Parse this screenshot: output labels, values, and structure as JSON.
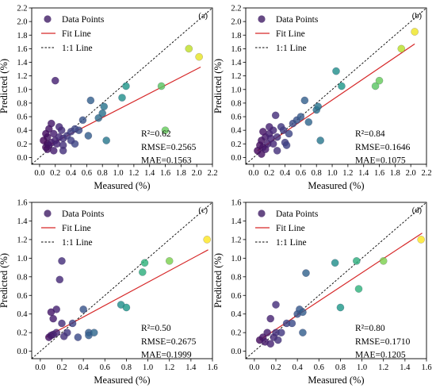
{
  "colors": {
    "fit_line": "#d62728",
    "one_to_one": "#000000",
    "legend_marker": "#4b2a6e",
    "axes": "#000000",
    "colormap": [
      "#440154",
      "#482878",
      "#3e4a89",
      "#31688e",
      "#26828e",
      "#1f9e89",
      "#35b779",
      "#6ece58",
      "#b5de2b",
      "#fde725"
    ]
  },
  "legend": {
    "points_label": "Data Points",
    "fit_label": "Fit Line",
    "one_to_one_label": "1:1 Line"
  },
  "chart_data": [
    {
      "type": "scatter",
      "panel": "(a)",
      "xlabel": "Measured (%)",
      "ylabel": "Predicted (%)",
      "xlim": [
        -0.1,
        2.2
      ],
      "ylim": [
        -0.1,
        2.2
      ],
      "xticks": [
        "0.0",
        "0.2",
        "0.4",
        "0.6",
        "0.8",
        "1.0",
        "1.2",
        "1.4",
        "1.6",
        "1.8",
        "2.0",
        "2.2"
      ],
      "yticks": [
        "0.0",
        "0.2",
        "0.4",
        "0.6",
        "0.8",
        "1.0",
        "1.2",
        "1.4",
        "1.6",
        "1.8",
        "2.0",
        "2.2"
      ],
      "grid": false,
      "legend_position": "upper-left",
      "fit_line": {
        "x": [
          0.05,
          2.05
        ],
        "y": [
          0.14,
          1.33
        ]
      },
      "stats": {
        "r2": "R²=0.62",
        "rmse": "RMSE=0.2565",
        "mae": "MAE=0.1563"
      },
      "points": [
        {
          "x": 0.08,
          "y": 0.15
        },
        {
          "x": 0.1,
          "y": 0.2
        },
        {
          "x": 0.12,
          "y": 0.18
        },
        {
          "x": 0.15,
          "y": 0.22
        },
        {
          "x": 0.1,
          "y": 0.3
        },
        {
          "x": 0.2,
          "y": 0.25
        },
        {
          "x": 0.18,
          "y": 0.35
        },
        {
          "x": 0.22,
          "y": 0.2
        },
        {
          "x": 0.25,
          "y": 0.3
        },
        {
          "x": 0.3,
          "y": 0.28
        },
        {
          "x": 0.28,
          "y": 0.4
        },
        {
          "x": 0.15,
          "y": 0.5
        },
        {
          "x": 0.12,
          "y": 0.42
        },
        {
          "x": 0.2,
          "y": 1.13
        },
        {
          "x": 0.35,
          "y": 0.32
        },
        {
          "x": 0.4,
          "y": 0.38
        },
        {
          "x": 0.45,
          "y": 0.2
        },
        {
          "x": 0.3,
          "y": 0.18
        },
        {
          "x": 0.25,
          "y": 0.45
        },
        {
          "x": 0.5,
          "y": 0.4
        },
        {
          "x": 0.55,
          "y": 0.55
        },
        {
          "x": 0.62,
          "y": 0.32
        },
        {
          "x": 0.65,
          "y": 0.84
        },
        {
          "x": 0.75,
          "y": 0.58
        },
        {
          "x": 0.8,
          "y": 0.65
        },
        {
          "x": 0.82,
          "y": 0.75
        },
        {
          "x": 0.85,
          "y": 0.25
        },
        {
          "x": 1.05,
          "y": 0.88
        },
        {
          "x": 1.1,
          "y": 1.05
        },
        {
          "x": 1.55,
          "y": 1.05
        },
        {
          "x": 1.6,
          "y": 0.4
        },
        {
          "x": 1.9,
          "y": 1.6
        },
        {
          "x": 2.03,
          "y": 1.48
        },
        {
          "x": 0.05,
          "y": 0.25
        },
        {
          "x": 0.08,
          "y": 0.35
        },
        {
          "x": 0.3,
          "y": 0.1
        },
        {
          "x": 0.4,
          "y": 0.25
        },
        {
          "x": 0.45,
          "y": 0.42
        },
        {
          "x": 0.18,
          "y": 0.1
        },
        {
          "x": 0.1,
          "y": 0.12
        }
      ]
    },
    {
      "type": "scatter",
      "panel": "(b)",
      "xlabel": "Measured (%)",
      "ylabel": "Predicted (%)",
      "xlim": [
        -0.1,
        2.2
      ],
      "ylim": [
        -0.1,
        2.2
      ],
      "xticks": [
        "0.0",
        "0.2",
        "0.4",
        "0.6",
        "0.8",
        "1.0",
        "1.2",
        "1.4",
        "1.6",
        "1.8",
        "2.0",
        "2.2"
      ],
      "yticks": [
        "0.0",
        "0.2",
        "0.4",
        "0.6",
        "0.8",
        "1.0",
        "1.2",
        "1.4",
        "1.6",
        "1.8",
        "2.0",
        "2.2"
      ],
      "grid": false,
      "legend_position": "upper-left",
      "fit_line": {
        "x": [
          0.05,
          2.05
        ],
        "y": [
          0.1,
          1.67
        ]
      },
      "stats": {
        "r2": "R²=0.84",
        "rmse": "RMSE=0.1646",
        "mae": "MAE=0.1075"
      },
      "points": [
        {
          "x": 0.05,
          "y": 0.1
        },
        {
          "x": 0.08,
          "y": 0.18
        },
        {
          "x": 0.1,
          "y": 0.25
        },
        {
          "x": 0.12,
          "y": 0.15
        },
        {
          "x": 0.15,
          "y": 0.3
        },
        {
          "x": 0.18,
          "y": 0.2
        },
        {
          "x": 0.2,
          "y": 0.35
        },
        {
          "x": 0.22,
          "y": 0.28
        },
        {
          "x": 0.25,
          "y": 0.4
        },
        {
          "x": 0.28,
          "y": 0.62
        },
        {
          "x": 0.3,
          "y": 0.3
        },
        {
          "x": 0.35,
          "y": 0.45
        },
        {
          "x": 0.4,
          "y": 0.22
        },
        {
          "x": 0.45,
          "y": 0.35
        },
        {
          "x": 0.5,
          "y": 0.5
        },
        {
          "x": 0.55,
          "y": 0.55
        },
        {
          "x": 0.6,
          "y": 0.6
        },
        {
          "x": 0.65,
          "y": 0.84
        },
        {
          "x": 0.7,
          "y": 0.52
        },
        {
          "x": 0.8,
          "y": 0.7
        },
        {
          "x": 0.82,
          "y": 0.75
        },
        {
          "x": 0.85,
          "y": 0.25
        },
        {
          "x": 1.05,
          "y": 1.27
        },
        {
          "x": 1.12,
          "y": 1.05
        },
        {
          "x": 1.55,
          "y": 1.05
        },
        {
          "x": 1.6,
          "y": 1.13
        },
        {
          "x": 1.88,
          "y": 1.6
        },
        {
          "x": 2.05,
          "y": 1.85
        },
        {
          "x": 0.1,
          "y": 0.05
        },
        {
          "x": 0.15,
          "y": 0.12
        },
        {
          "x": 0.3,
          "y": 0.1
        },
        {
          "x": 0.2,
          "y": 0.45
        },
        {
          "x": 0.12,
          "y": 0.38
        },
        {
          "x": 0.38,
          "y": 0.4
        },
        {
          "x": 0.42,
          "y": 0.18
        },
        {
          "x": 0.25,
          "y": 0.2
        }
      ]
    },
    {
      "type": "scatter",
      "panel": "(c)",
      "xlabel": "Measured (%)",
      "ylabel": "Predicted (%)",
      "xlim": [
        -0.08,
        1.6
      ],
      "ylim": [
        -0.08,
        1.6
      ],
      "xticks": [
        "0.0",
        "0.2",
        "0.4",
        "0.6",
        "0.8",
        "1.0",
        "1.2",
        "1.4",
        "1.6"
      ],
      "yticks": [
        "0.0",
        "0.2",
        "0.4",
        "0.6",
        "0.8",
        "1.0",
        "1.2",
        "1.4",
        "1.6"
      ],
      "grid": false,
      "legend_position": "upper-left",
      "fit_line": {
        "x": [
          0.05,
          1.56
        ],
        "y": [
          0.15,
          1.09
        ]
      },
      "stats": {
        "r2": "R²=0.50",
        "rmse": "RMSE=0.2675",
        "mae": "MAE=0.1999"
      },
      "points": [
        {
          "x": 0.08,
          "y": 0.15
        },
        {
          "x": 0.1,
          "y": 0.17
        },
        {
          "x": 0.12,
          "y": 0.18
        },
        {
          "x": 0.15,
          "y": 0.2
        },
        {
          "x": 0.18,
          "y": 0.77
        },
        {
          "x": 0.2,
          "y": 0.97
        },
        {
          "x": 0.15,
          "y": 0.45
        },
        {
          "x": 0.12,
          "y": 0.35
        },
        {
          "x": 0.2,
          "y": 0.3
        },
        {
          "x": 0.25,
          "y": 0.2
        },
        {
          "x": 0.3,
          "y": 0.3
        },
        {
          "x": 0.35,
          "y": 0.15
        },
        {
          "x": 0.4,
          "y": 0.45
        },
        {
          "x": 0.45,
          "y": 0.2
        },
        {
          "x": 0.45,
          "y": 0.17
        },
        {
          "x": 0.5,
          "y": 0.2
        },
        {
          "x": 0.75,
          "y": 0.5
        },
        {
          "x": 0.8,
          "y": 0.47
        },
        {
          "x": 0.95,
          "y": 0.85
        },
        {
          "x": 0.97,
          "y": 0.95
        },
        {
          "x": 1.2,
          "y": 0.97
        },
        {
          "x": 1.55,
          "y": 1.2
        },
        {
          "x": 0.1,
          "y": 0.42
        },
        {
          "x": 0.22,
          "y": 0.16
        }
      ]
    },
    {
      "type": "scatter",
      "panel": "(d)",
      "xlabel": "Measured (%)",
      "ylabel": "Predicted (%)",
      "xlim": [
        -0.08,
        1.6
      ],
      "ylim": [
        -0.08,
        1.6
      ],
      "xticks": [
        "0.0",
        "0.2",
        "0.4",
        "0.6",
        "0.8",
        "1.0",
        "1.2",
        "1.4",
        "1.6"
      ],
      "yticks": [
        "0.0",
        "0.2",
        "0.4",
        "0.6",
        "0.8",
        "1.0",
        "1.2",
        "1.4",
        "1.6"
      ],
      "grid": false,
      "legend_position": "upper-left",
      "fit_line": {
        "x": [
          0.05,
          1.56
        ],
        "y": [
          0.12,
          1.27
        ]
      },
      "stats": {
        "r2": "R²=0.80",
        "rmse": "RMSE=0.1710",
        "mae": "MAE=0.1205"
      },
      "points": [
        {
          "x": 0.05,
          "y": 0.12
        },
        {
          "x": 0.08,
          "y": 0.15
        },
        {
          "x": 0.1,
          "y": 0.1
        },
        {
          "x": 0.12,
          "y": 0.2
        },
        {
          "x": 0.15,
          "y": 0.35
        },
        {
          "x": 0.18,
          "y": 0.15
        },
        {
          "x": 0.2,
          "y": 0.2
        },
        {
          "x": 0.22,
          "y": 0.12
        },
        {
          "x": 0.2,
          "y": 0.5
        },
        {
          "x": 0.25,
          "y": 0.2
        },
        {
          "x": 0.3,
          "y": 0.3
        },
        {
          "x": 0.35,
          "y": 0.3
        },
        {
          "x": 0.4,
          "y": 0.4
        },
        {
          "x": 0.42,
          "y": 0.45
        },
        {
          "x": 0.45,
          "y": 0.42
        },
        {
          "x": 0.48,
          "y": 0.84
        },
        {
          "x": 0.75,
          "y": 0.95
        },
        {
          "x": 0.8,
          "y": 0.47
        },
        {
          "x": 0.95,
          "y": 0.97
        },
        {
          "x": 0.97,
          "y": 0.67
        },
        {
          "x": 1.2,
          "y": 0.97
        },
        {
          "x": 1.55,
          "y": 1.2
        },
        {
          "x": 0.15,
          "y": 0.08
        },
        {
          "x": 0.45,
          "y": 0.2
        }
      ]
    }
  ]
}
